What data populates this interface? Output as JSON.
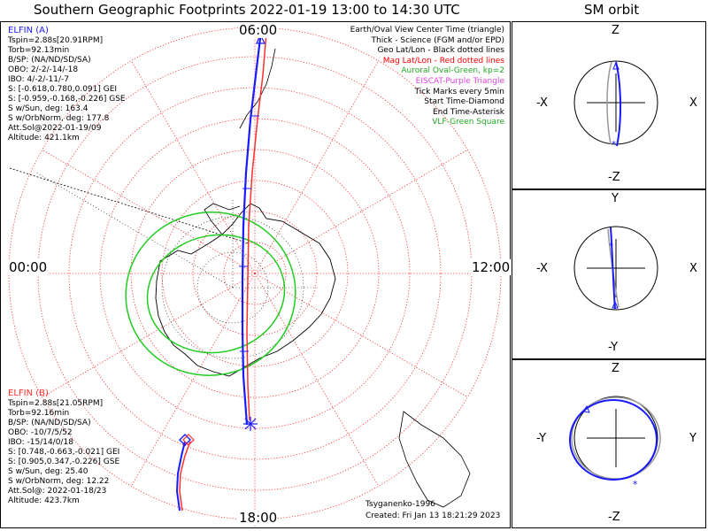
{
  "header": {
    "title": "Southern Geographic Footprints 2022-01-19 13:00 to 14:30 UTC",
    "sm_title": "SM orbit"
  },
  "colors": {
    "elfin_a": "#0000ff",
    "elfin_b": "#ff3030",
    "auroral_oval": "#22cc22",
    "geo_grid": "#000000",
    "mag_grid": "#ff0000",
    "eiscat": "#dd44dd",
    "vlf": "#22cc22"
  },
  "hours": {
    "top": "06:00",
    "left": "00:00",
    "right": "12:00",
    "bottom": "18:00"
  },
  "elfin_a": {
    "name": "ELFIN (A)",
    "lines": [
      "Tspin=2.88s[20.91RPM]",
      "Torb=92.13min",
      "B/SP: (NA/ND/SD/SA)",
      "OBO: 2/-2/-14/-18",
      "IBO: 4/-2/-11/-7",
      "S: [-0.618,0.780,0.091] GEI",
      "S: [-0.959,-0.168,-0.226] GSE",
      "S w/Sun, deg: 163.4",
      "S w/OrbNorm, deg: 177.8",
      "Att.Sol@2022-01-19/09",
      "Altitude: 421.1km"
    ]
  },
  "elfin_b": {
    "name": "ELFIN (B)",
    "lines": [
      "Tspin=2.88s[21.05RPM]",
      "Torb=92.16min",
      "B/SP: (NA/ND/SD/SA)",
      "OBO: -10/7/5/52",
      "IBO: -15/14/0/18",
      "S: [0.748,-0.663,-0.021] GEI",
      "S: [0.905,0.347,-0.226] GSE",
      "S w/Sun, deg: 25.40",
      "S w/OrbNorm, deg: 12.22",
      "Att.Sol@: 2022-01-18/23",
      "Altitude: 423.7km"
    ]
  },
  "legend": [
    {
      "text": "Earth/Oval View Center Time (triangle)",
      "color": "#000000"
    },
    {
      "text": "Thick - Science (FGM and/or EPD)",
      "color": "#000000"
    },
    {
      "text": "Geo Lat/Lon - Black dotted lines",
      "color": "#000000"
    },
    {
      "text": "Mag Lat/Lon - Red dotted lines",
      "color": "#ff0000"
    },
    {
      "text": "Auroral Oval-Green, kp=2",
      "color": "#22aa22"
    },
    {
      "text": "EISCAT-Purple Triangle",
      "color": "#dd44dd"
    },
    {
      "text": "Tick Marks every 5min",
      "color": "#000000"
    },
    {
      "text": "Start Time-Diamond",
      "color": "#000000"
    },
    {
      "text": "End Time-Asterisk",
      "color": "#000000"
    },
    {
      "text": "VLF-Green Square",
      "color": "#22aa22"
    }
  ],
  "footer": {
    "credit": "Tsyganenko-1996",
    "created": "Created: Fri Jan 13 18:21:29 2023"
  },
  "sm_panels": [
    {
      "top": "Z",
      "bottom": "-Z",
      "left": "-X",
      "right": "X"
    },
    {
      "top": "Y",
      "bottom": "-Y",
      "left": "-X",
      "right": "X"
    },
    {
      "top": "Z",
      "bottom": "-Z",
      "left": "-Y",
      "right": "Y"
    }
  ]
}
